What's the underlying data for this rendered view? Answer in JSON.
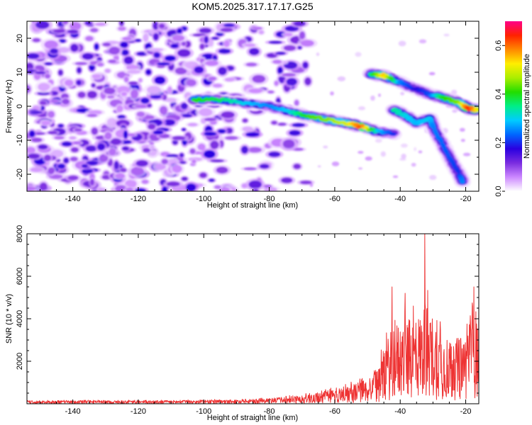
{
  "title": "KOM5.2025.317.17.17.G25",
  "chart_data": [
    {
      "type": "heatmap",
      "xlabel": "Height of straight line (km)",
      "ylabel": "Frequency (Hz)",
      "xlim": [
        -154,
        -16
      ],
      "ylim": [
        -25,
        25
      ],
      "x_ticks": [
        -140,
        -120,
        -100,
        -80,
        -60,
        -40,
        -20
      ],
      "y_ticks": [
        20,
        10,
        0,
        -10,
        -20
      ],
      "colorbar": {
        "label": "Normalized spectral amplitude",
        "range": [
          0.0,
          0.7
        ],
        "ticks": [
          0.0,
          0.2,
          0.4,
          0.6
        ],
        "tick_labels": [
          "0.0",
          "0.2",
          "0.4",
          "0.6"
        ],
        "colormap": [
          "#ffffff",
          "#cc88ff",
          "#7a2ce0",
          "#2a00e0",
          "#0066ff",
          "#00ccff",
          "#00ee88",
          "#22dd00",
          "#aaee00",
          "#ffee00",
          "#ff8800",
          "#ff2200",
          "#ff0088"
        ]
      },
      "noise_region": {
        "x_range": [
          -154,
          -68
        ],
        "y_range": [
          -25,
          25
        ],
        "typical_amplitude": 0.12
      },
      "ridges": [
        {
          "name": "main echo",
          "points": [
            {
              "x": -103,
              "y": 2.0,
              "amp": 0.4
            },
            {
              "x": -96,
              "y": 2.0,
              "amp": 0.38
            },
            {
              "x": -88,
              "y": 1.0,
              "amp": 0.3
            },
            {
              "x": -80,
              "y": 0.0,
              "amp": 0.25
            },
            {
              "x": -74,
              "y": -1.5,
              "amp": 0.3
            },
            {
              "x": -68,
              "y": -3.0,
              "amp": 0.42
            },
            {
              "x": -62,
              "y": -4.0,
              "amp": 0.45
            },
            {
              "x": -56,
              "y": -5.0,
              "amp": 0.5
            },
            {
              "x": -52,
              "y": -6.0,
              "amp": 0.62
            },
            {
              "x": -47,
              "y": -7.5,
              "amp": 0.3
            },
            {
              "x": -42,
              "y": -8.0,
              "amp": 0.2
            }
          ]
        },
        {
          "name": "upper echo",
          "points": [
            {
              "x": -49,
              "y": 9.5,
              "amp": 0.35
            },
            {
              "x": -45,
              "y": 9.0,
              "amp": 0.55
            },
            {
              "x": -40,
              "y": 7.0,
              "amp": 0.25
            },
            {
              "x": -35,
              "y": 5.0,
              "amp": 0.18
            },
            {
              "x": -31,
              "y": 3.5,
              "amp": 0.22
            },
            {
              "x": -27,
              "y": 2.5,
              "amp": 0.4
            },
            {
              "x": -22,
              "y": 1.0,
              "amp": 0.45
            },
            {
              "x": -19,
              "y": -0.8,
              "amp": 0.65
            },
            {
              "x": -16,
              "y": -1.0,
              "amp": 0.5
            }
          ]
        },
        {
          "name": "branch echo",
          "points": [
            {
              "x": -42,
              "y": -1.0,
              "amp": 0.35
            },
            {
              "x": -38,
              "y": -3.0,
              "amp": 0.3
            },
            {
              "x": -35,
              "y": -5.0,
              "amp": 0.28
            },
            {
              "x": -31,
              "y": -3.5,
              "amp": 0.3
            },
            {
              "x": -30,
              "y": -6.0,
              "amp": 0.25
            },
            {
              "x": -25,
              "y": -15.0,
              "amp": 0.22
            },
            {
              "x": -22,
              "y": -20.0,
              "amp": 0.2
            },
            {
              "x": -21,
              "y": -22.0,
              "amp": 0.25
            }
          ]
        }
      ]
    },
    {
      "type": "line",
      "xlabel": "Height of straight line (km)",
      "ylabel": "SNR (10 * v/v)",
      "xlim": [
        -154,
        -16
      ],
      "ylim": [
        0,
        8000
      ],
      "x_ticks": [
        -140,
        -120,
        -100,
        -80,
        -60,
        -40,
        -20
      ],
      "y_ticks": [
        2000,
        4000,
        6000,
        8000
      ],
      "color": "#ee3333",
      "envelope": [
        {
          "x": -154,
          "y": 150
        },
        {
          "x": -120,
          "y": 150
        },
        {
          "x": -90,
          "y": 180
        },
        {
          "x": -80,
          "y": 250
        },
        {
          "x": -70,
          "y": 400
        },
        {
          "x": -60,
          "y": 700
        },
        {
          "x": -55,
          "y": 900
        },
        {
          "x": -50,
          "y": 1200
        },
        {
          "x": -47,
          "y": 1700
        },
        {
          "x": -44,
          "y": 3000
        },
        {
          "x": -42,
          "y": 3800
        },
        {
          "x": -38,
          "y": 3900
        },
        {
          "x": -34,
          "y": 4300
        },
        {
          "x": -32,
          "y": 4800
        },
        {
          "x": -28,
          "y": 3600
        },
        {
          "x": -24,
          "y": 3000
        },
        {
          "x": -20,
          "y": 3300
        },
        {
          "x": -18,
          "y": 5000
        },
        {
          "x": -16,
          "y": 4000
        }
      ],
      "peaks": [
        {
          "x": -32.5,
          "y": 8000
        },
        {
          "x": -42.5,
          "y": 5500
        },
        {
          "x": -17.5,
          "y": 5500
        },
        {
          "x": -38.5,
          "y": 5200
        },
        {
          "x": -36.0,
          "y": 4600
        }
      ]
    }
  ]
}
